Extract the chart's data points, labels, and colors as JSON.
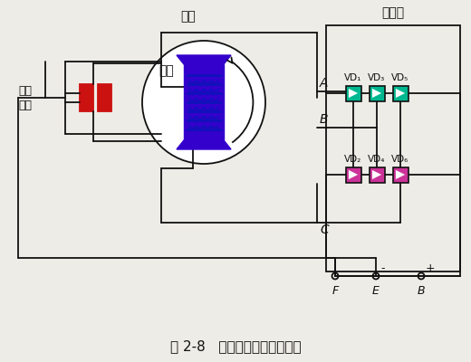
{
  "title": "图 2-8   交流发电机工作原理图",
  "label_dingzi": "定子",
  "label_zhuanzi": "转子",
  "label_huanjshua": "滑环\n电刷",
  "label_zhengliu": "整流器",
  "label_A": "A",
  "label_B": "B",
  "label_C": "C",
  "label_E": "E",
  "label_F": "F",
  "label_Bterm": "B",
  "label_plus": "+",
  "label_minus": "-",
  "vd_top": [
    "VD₁",
    "VD₃",
    "VD₅"
  ],
  "vd_bot": [
    "VD₂",
    "VD₄",
    "VD₆"
  ],
  "color_top_diode": "#00B890",
  "color_bot_diode": "#CC3399",
  "color_rotor": "#3300CC",
  "color_brush": "#CC1111",
  "bg_color": "#EEECe6",
  "line_color": "#111111",
  "fig_width": 5.2,
  "fig_height": 4.0,
  "dpi": 100
}
